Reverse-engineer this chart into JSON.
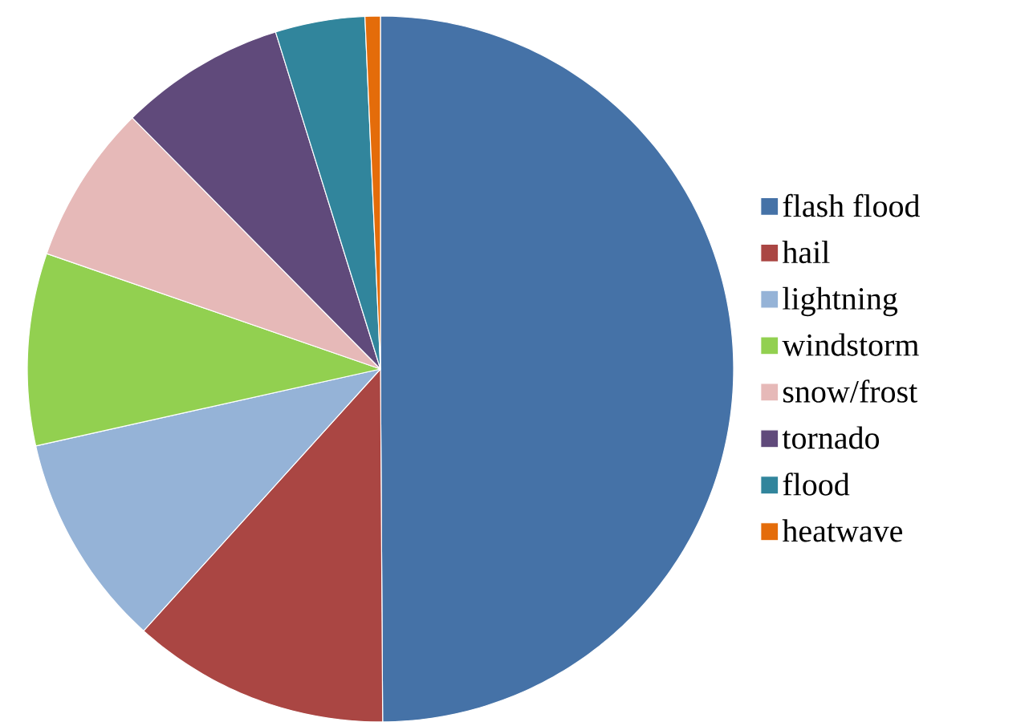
{
  "chart_data": {
    "type": "pie",
    "categories": [
      "flash flood",
      "hail",
      "lightning",
      "windstorm",
      "snow/frost",
      "tornado",
      "flood",
      "heatwave"
    ],
    "values": [
      49.9,
      11.8,
      9.8,
      8.8,
      7.3,
      7.6,
      4.1,
      0.7
    ],
    "colors": [
      "#4572A7",
      "#AA4643",
      "#95B3D7",
      "#92D050",
      "#E6B9B8",
      "#604A7B",
      "#31859C",
      "#E46C0A"
    ],
    "legend": "right"
  }
}
